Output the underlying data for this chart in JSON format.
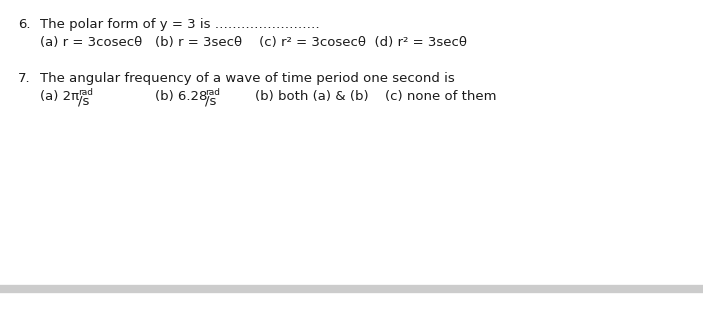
{
  "bg_color": "#ffffff",
  "footer_line_color": "#cccccc",
  "text_color": "#1a1a1a",
  "q6_number": "6.",
  "q6_question": "The polar form of y = 3 is ……………………",
  "q6_options": "(a) r = 3cosecθ   (b) r = 3secθ    (c) r² = 3cosecθ  (d) r² = 3secθ",
  "q7_number": "7.",
  "q7_question": "The angular frequency of a wave of time period one second is",
  "q7_opt_c": "(b) both (a) & (b)",
  "q7_opt_d": "(c) none of them",
  "font_size": 9.5,
  "font_size_super": 6.5
}
